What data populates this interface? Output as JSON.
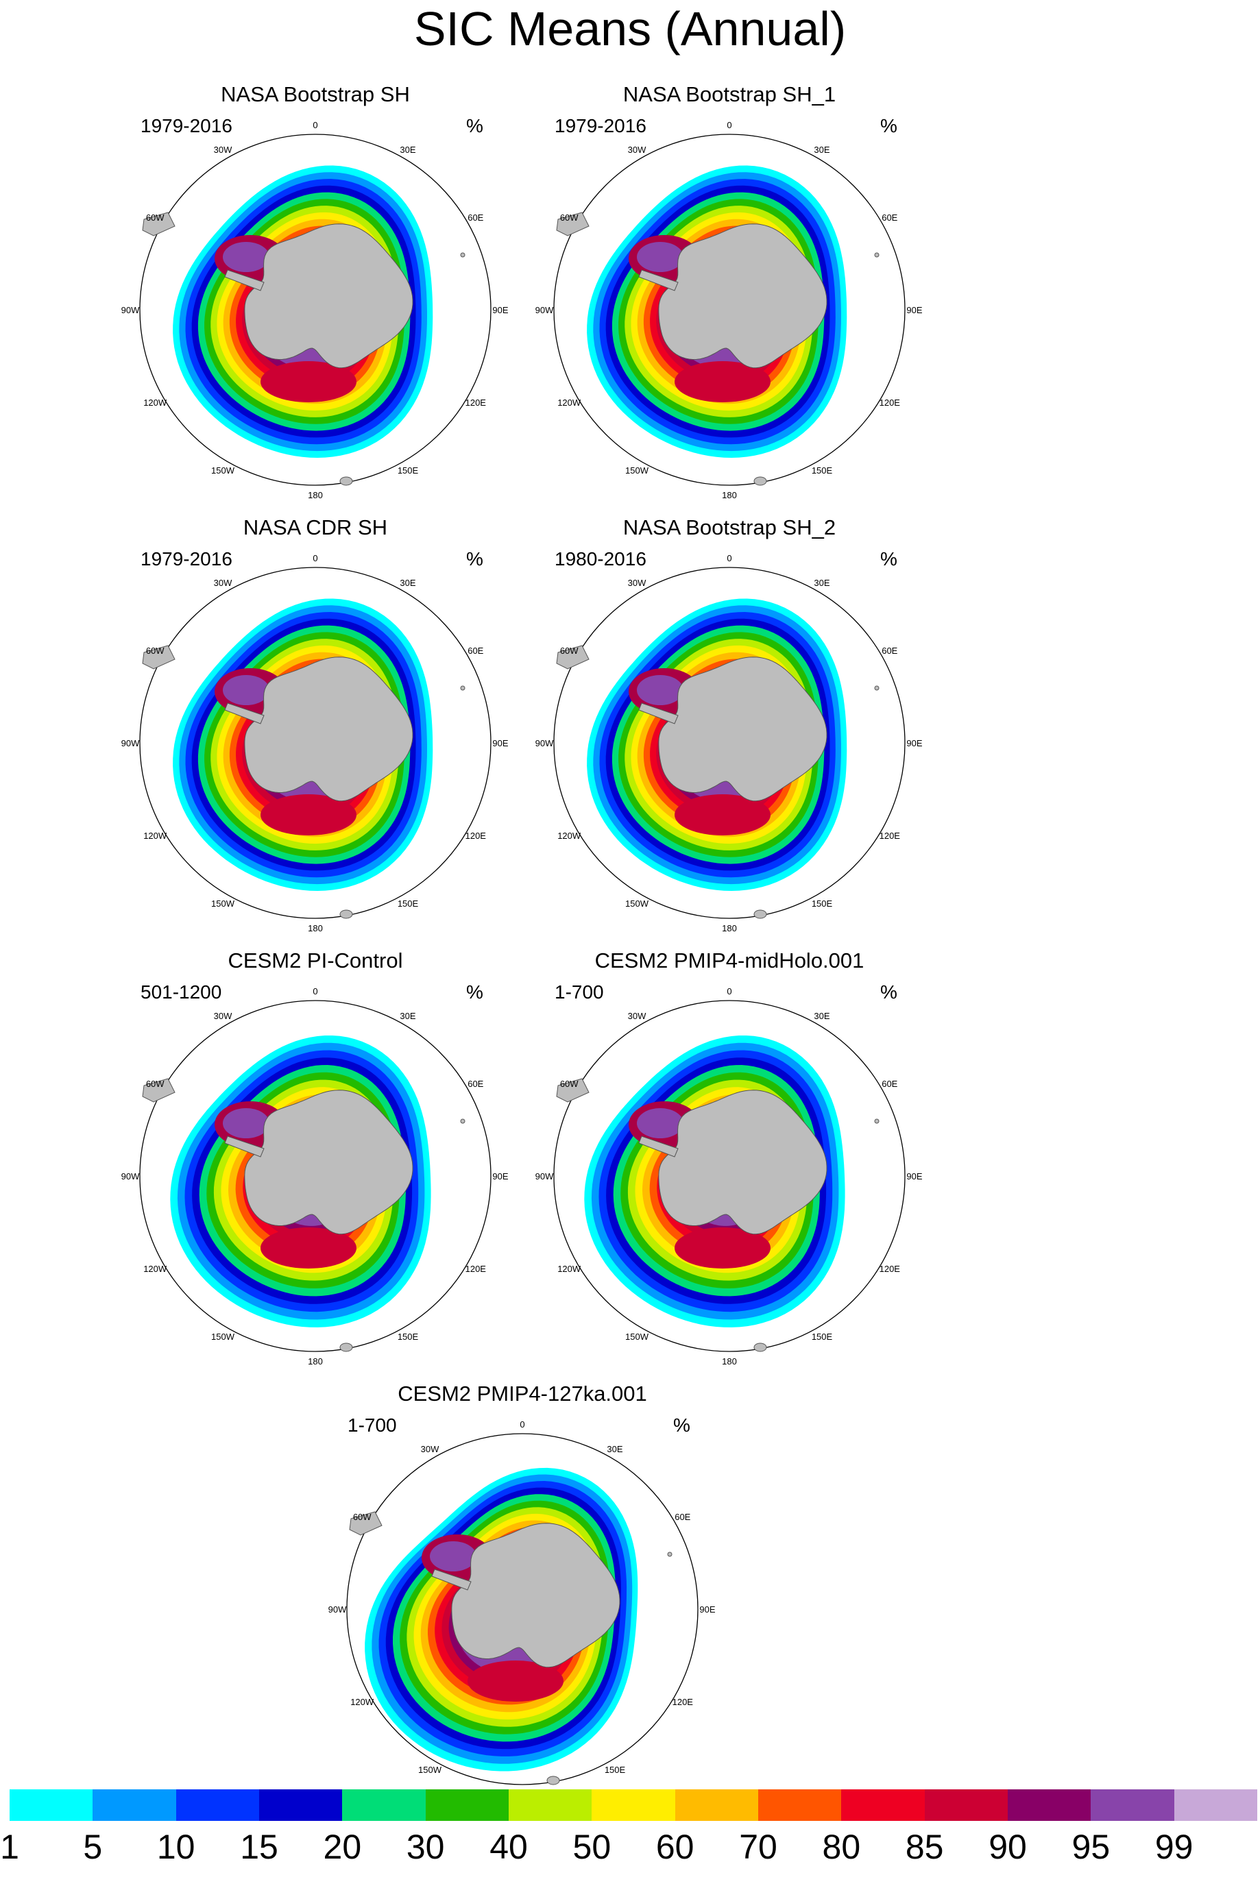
{
  "title": "SIC Means (Annual)",
  "unit": "%",
  "longitude_labels": [
    "0",
    "30E",
    "60E",
    "90E",
    "120E",
    "150E",
    "180",
    "150W",
    "120W",
    "90W",
    "60W",
    "30W"
  ],
  "panels": [
    {
      "title": "NASA Bootstrap SH",
      "period": "1979-2016",
      "style": "obs",
      "hole": "deep"
    },
    {
      "title": "NASA Bootstrap SH_1",
      "period": "1979-2016",
      "style": "obs",
      "hole": "deep"
    },
    {
      "title": "NASA CDR SH",
      "period": "1979-2016",
      "style": "obs",
      "hole": "shallow"
    },
    {
      "title": "NASA Bootstrap SH_2",
      "period": "1980-2016",
      "style": "obs",
      "hole": "shallow"
    },
    {
      "title": "CESM2 PI-Control",
      "period": "501-1200",
      "style": "model",
      "hole": "wide"
    },
    {
      "title": "CESM2 PMIP4-midHolo.001",
      "period": "1-700",
      "style": "model",
      "hole": "wide"
    },
    {
      "title": "CESM2 PMIP4-127ka.001",
      "period": "1-700",
      "style": "lig",
      "hole": "wide"
    }
  ],
  "colorbar": {
    "labels": [
      "1",
      "5",
      "10",
      "15",
      "20",
      "30",
      "40",
      "50",
      "60",
      "70",
      "80",
      "85",
      "90",
      "95",
      "99"
    ],
    "colors": [
      "#00ffff",
      "#0099ff",
      "#0033ff",
      "#0000cc",
      "#00dd77",
      "#22bb00",
      "#bbee00",
      "#ffee00",
      "#ffbb00",
      "#ff5500",
      "#ee0022",
      "#cc0033",
      "#880066",
      "#8844aa",
      "#c8a8d8"
    ]
  }
}
